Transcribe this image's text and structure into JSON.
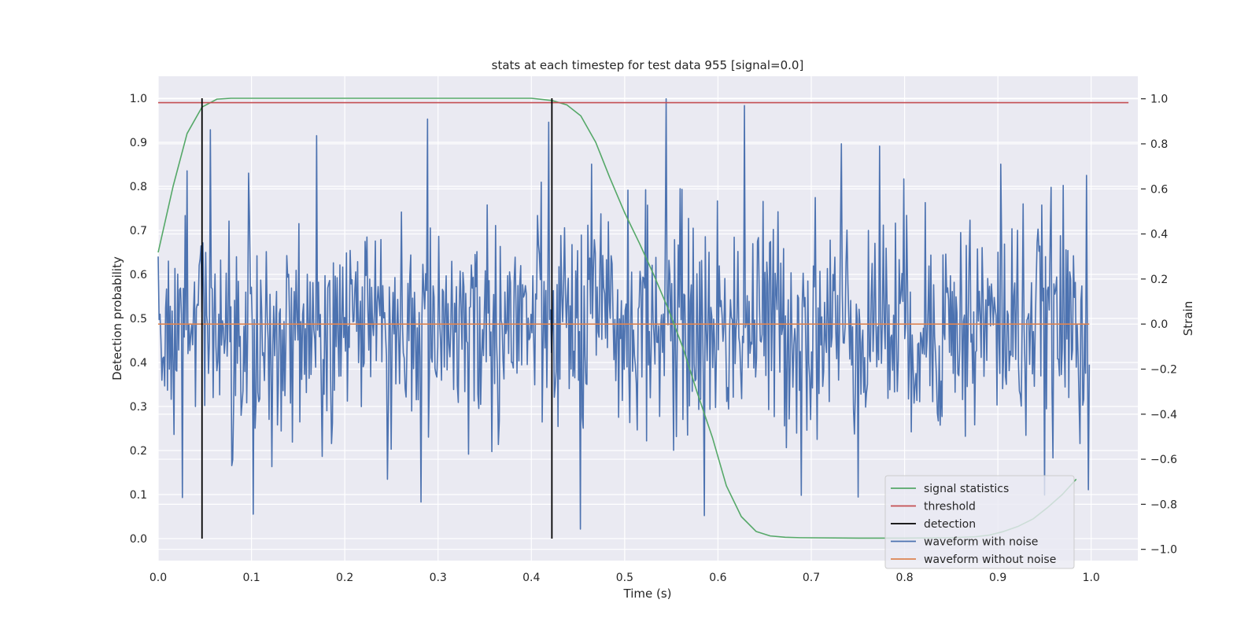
{
  "chart_data": {
    "type": "line",
    "title": "stats at each timestep for test data 955 [signal=0.0]",
    "xlabel": "Time (s)",
    "ylabel_left": "Detection probability",
    "ylabel_right": "Strain",
    "xlim": [
      0.0,
      1.05
    ],
    "ylim_left": [
      -0.05,
      1.05
    ],
    "ylim_right": [
      -1.05,
      1.1
    ],
    "x_ticks": [
      0.0,
      0.1,
      0.2,
      0.3,
      0.4,
      0.5,
      0.6,
      0.7,
      0.8,
      0.9,
      1.0
    ],
    "x_tick_labels": [
      "0.0",
      "0.1",
      "0.2",
      "0.3",
      "0.4",
      "0.5",
      "0.6",
      "0.7",
      "0.8",
      "0.9",
      "1.0"
    ],
    "y_left_ticks": [
      0.0,
      0.1,
      0.2,
      0.3,
      0.4,
      0.5,
      0.6,
      0.7,
      0.8,
      0.9,
      1.0
    ],
    "y_left_tick_labels": [
      "0.0",
      "0.1",
      "0.2",
      "0.3",
      "0.4",
      "0.5",
      "0.6",
      "0.7",
      "0.8",
      "0.9",
      "1.0"
    ],
    "y_right_ticks": [
      -1.0,
      -0.8,
      -0.6,
      -0.4,
      -0.2,
      0.0,
      0.2,
      0.4,
      0.6,
      0.8,
      1.0
    ],
    "y_right_tick_labels": [
      "−1.0",
      "−0.8",
      "−0.6",
      "−0.4",
      "−0.2",
      "0.0",
      "0.2",
      "0.4",
      "0.6",
      "0.8",
      "1.0"
    ],
    "grid": true,
    "legend_position": "lower-right",
    "colors": {
      "background": "#eaeaf2",
      "grid": "#ffffff",
      "signal_statistics": "#55a868",
      "threshold": "#c44e52",
      "detection": "#000000",
      "waveform_with_noise": "#4c72b0",
      "waveform_without_noise": "#dd8452"
    },
    "series": [
      {
        "name": "signal statistics",
        "axis": "left",
        "x": [
          0.0,
          0.016,
          0.031,
          0.047,
          0.063,
          0.078,
          0.094,
          0.109,
          0.125,
          0.2,
          0.3,
          0.4,
          0.422,
          0.438,
          0.453,
          0.469,
          0.484,
          0.5,
          0.516,
          0.531,
          0.547,
          0.563,
          0.578,
          0.594,
          0.609,
          0.625,
          0.641,
          0.656,
          0.672,
          0.688,
          0.75,
          0.8,
          0.85,
          0.875,
          0.891,
          0.906,
          0.922,
          0.938,
          0.953,
          0.969,
          0.984
        ],
        "y": [
          0.65,
          0.8,
          0.92,
          0.98,
          0.998,
          1.0,
          1.0,
          1.0,
          1.0,
          1.0,
          1.0,
          1.0,
          0.995,
          0.985,
          0.96,
          0.9,
          0.82,
          0.74,
          0.67,
          0.6,
          0.52,
          0.43,
          0.33,
          0.23,
          0.12,
          0.05,
          0.016,
          0.006,
          0.003,
          0.002,
          0.001,
          0.001,
          0.002,
          0.004,
          0.008,
          0.016,
          0.028,
          0.045,
          0.07,
          0.1,
          0.135
        ]
      },
      {
        "name": "threshold",
        "axis": "left",
        "x": [
          0.0,
          1.04
        ],
        "y": [
          0.99,
          0.99
        ]
      },
      {
        "name": "detection",
        "axis": "left",
        "segments": [
          {
            "x": 0.047,
            "y_from": 0.0,
            "y_to": 1.0
          },
          {
            "x": 0.422,
            "y_from": 0.0,
            "y_to": 1.0
          }
        ]
      },
      {
        "name": "waveform with noise",
        "axis": "right",
        "note": "high-frequency Gaussian-like noise, 1000 samples over 0..1 s; amplitude mostly within ±0.6, peaks about 1.0 near t=0.544 and about -0.91 near t=0.453",
        "x_range": [
          0.0,
          0.998
        ],
        "n_points": 1000,
        "std": 0.25,
        "notable_points": [
          {
            "x": 0.0,
            "y": 0.3
          },
          {
            "x": 0.026,
            "y": -0.77
          },
          {
            "x": 0.031,
            "y": 0.68
          },
          {
            "x": 0.097,
            "y": 0.67
          },
          {
            "x": 0.289,
            "y": 0.91
          },
          {
            "x": 0.282,
            "y": -0.79
          },
          {
            "x": 0.411,
            "y": 0.63
          },
          {
            "x": 0.453,
            "y": -0.91
          },
          {
            "x": 0.465,
            "y": 0.71
          },
          {
            "x": 0.544,
            "y": 1.0
          },
          {
            "x": 0.585,
            "y": -0.85
          },
          {
            "x": 0.628,
            "y": 0.97
          },
          {
            "x": 0.689,
            "y": -0.76
          },
          {
            "x": 0.732,
            "y": 0.8
          },
          {
            "x": 0.773,
            "y": 0.79
          },
          {
            "x": 0.903,
            "y": 0.71
          },
          {
            "x": 0.995,
            "y": 0.66
          },
          {
            "x": 0.998,
            "y": -0.18
          }
        ]
      },
      {
        "name": "waveform without noise",
        "axis": "right",
        "x": [
          0.0,
          0.998
        ],
        "y": [
          0.0,
          0.0
        ]
      }
    ],
    "legend": [
      "signal statistics",
      "threshold",
      "detection",
      "waveform with noise",
      "waveform without noise"
    ]
  }
}
